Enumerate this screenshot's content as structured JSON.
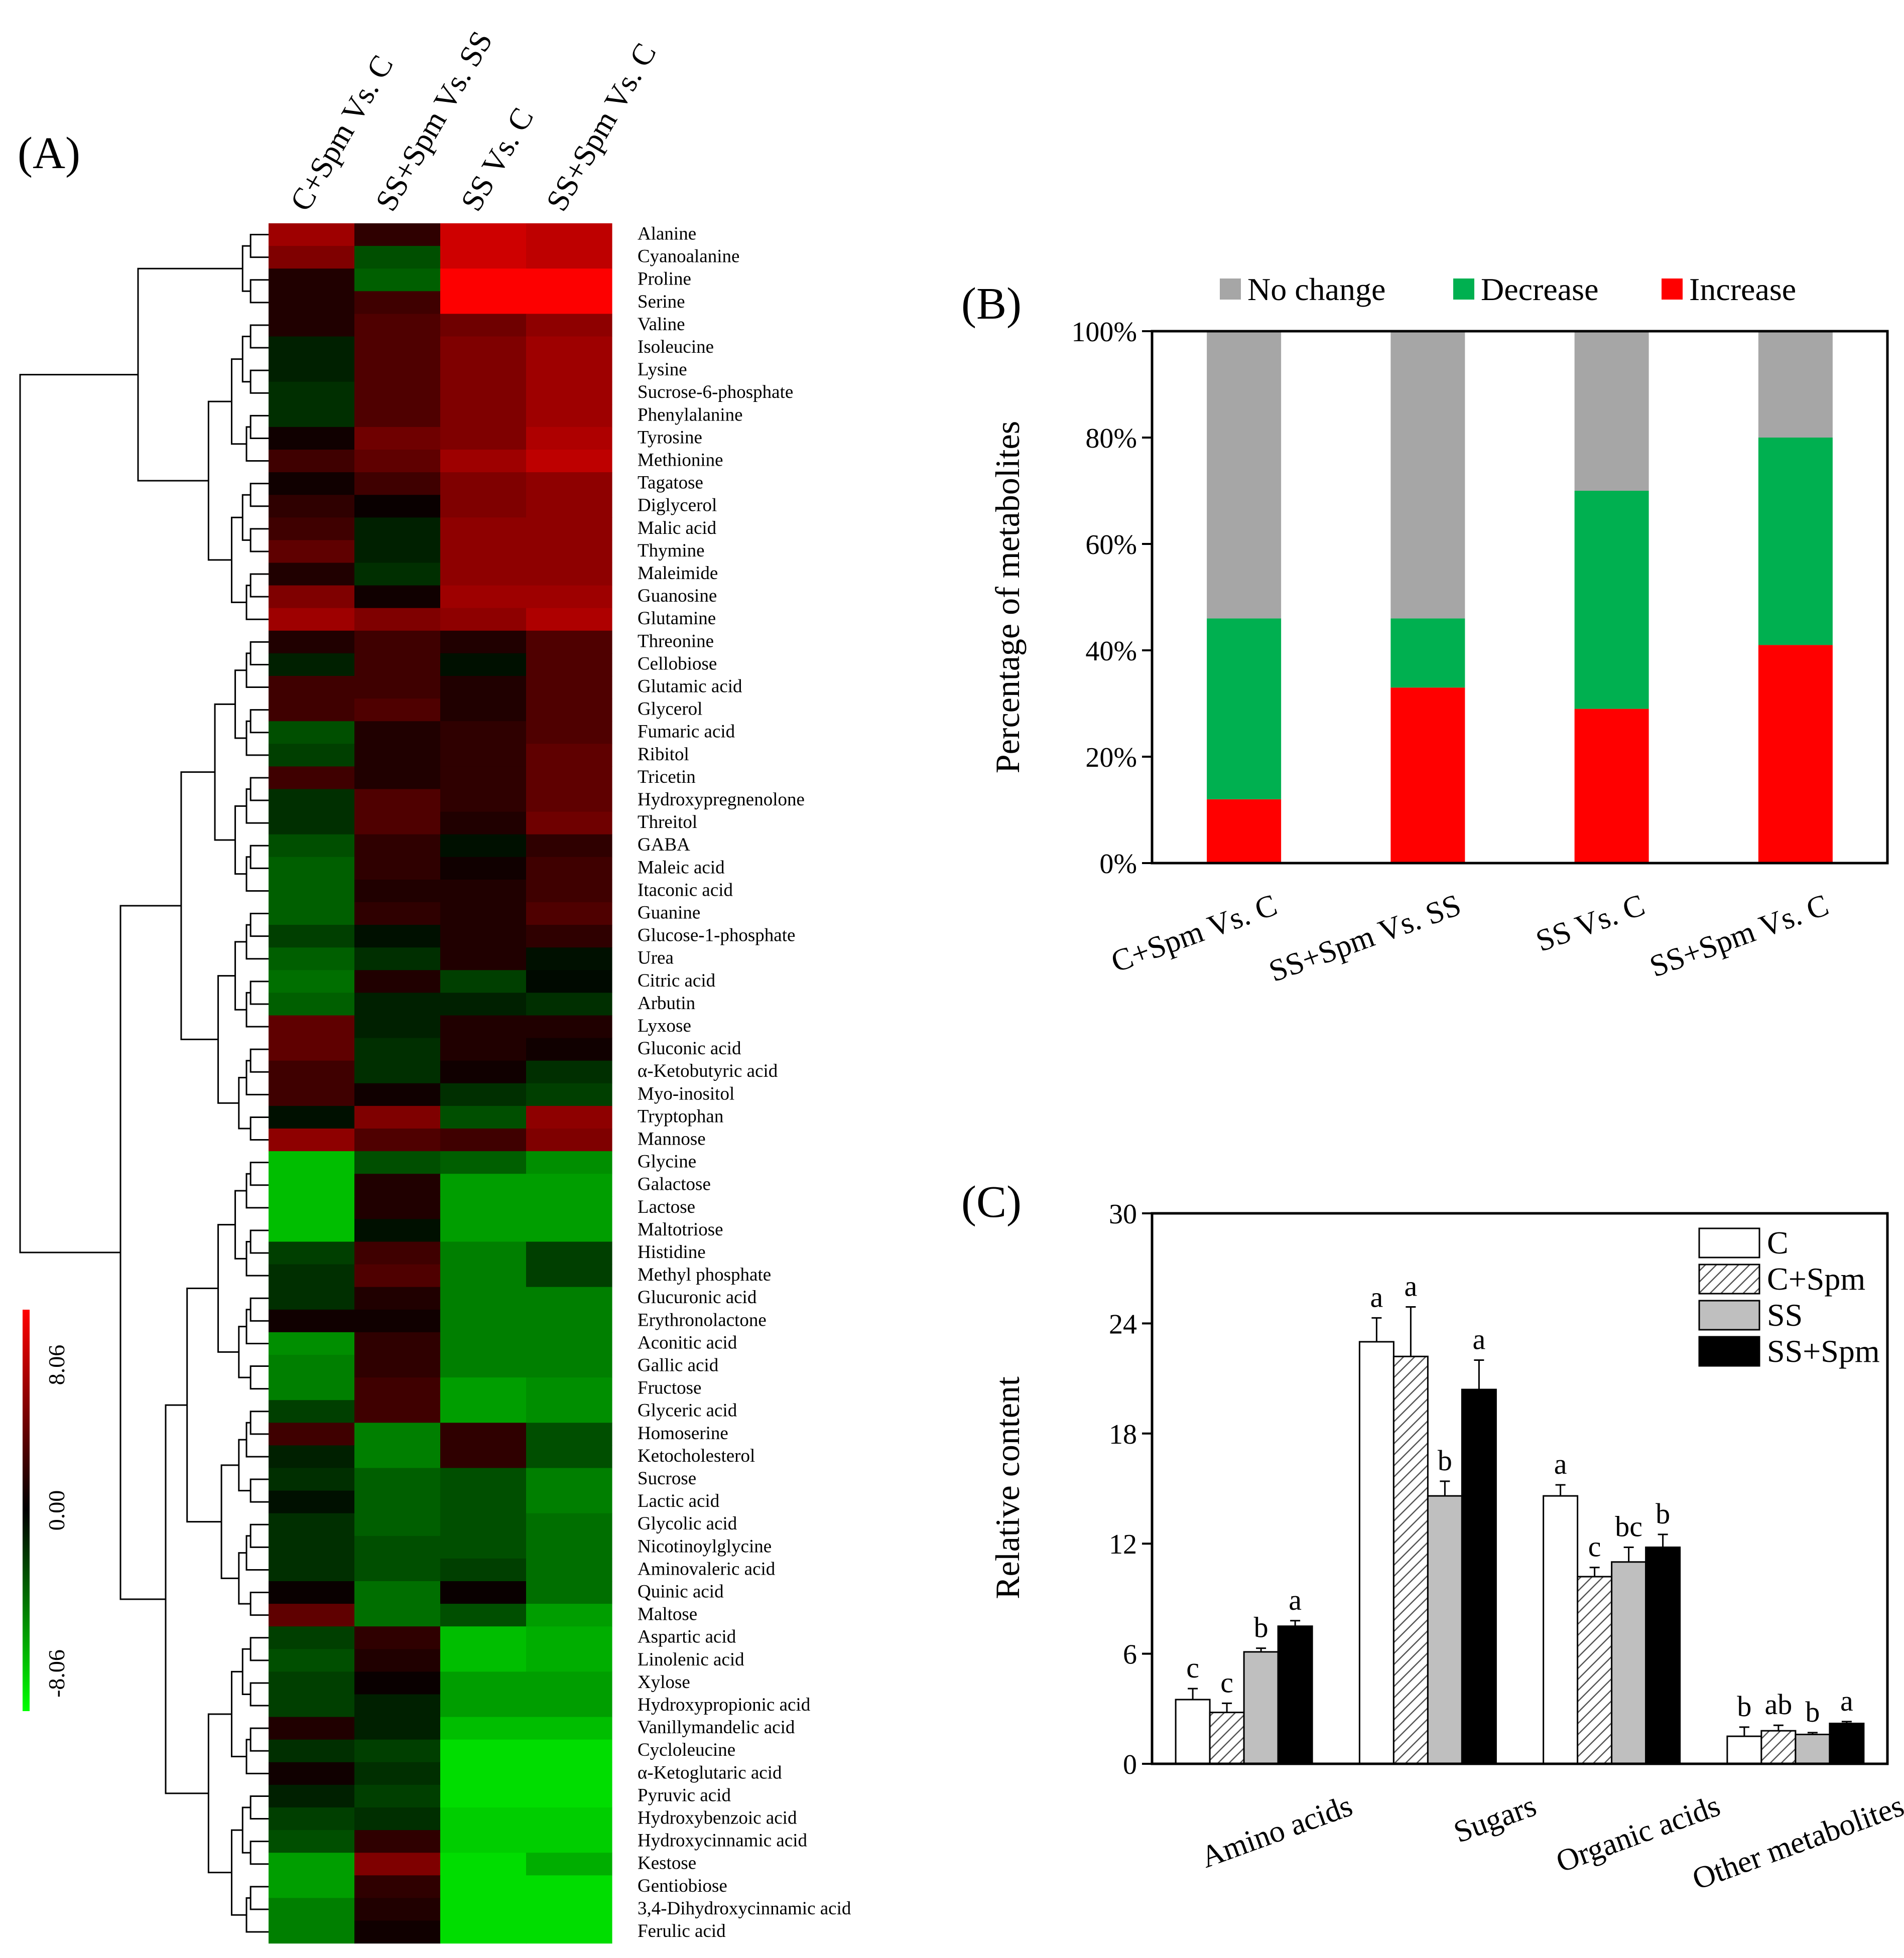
{
  "panels": [
    {
      "id": "A",
      "label": "(A)"
    },
    {
      "id": "B",
      "label": "(B)"
    },
    {
      "id": "C",
      "label": "(C)"
    }
  ],
  "chart_data": [
    {
      "type": "heatmap",
      "panel": "(A)",
      "columns": [
        "C+Spm Vs. C",
        "SS+Spm Vs. SS",
        "SS Vs. C",
        "SS+Spm Vs. C"
      ],
      "rows": [
        "Alanine",
        "Cyanoalanine",
        "Proline",
        "Serine",
        "Valine",
        "Isoleucine",
        "Lysine",
        "Sucrose-6-phosphate",
        "Phenylalanine",
        "Tyrosine",
        "Methionine",
        "Tagatose",
        "Diglycerol",
        "Malic acid",
        "Thymine",
        "Maleimide",
        "Guanosine",
        "Glutamine",
        "Threonine",
        "Cellobiose",
        "Glutamic acid",
        "Glycerol",
        "Fumaric acid",
        "Ribitol",
        "Tricetin",
        "Hydroxypregnenolone",
        "Threitol",
        "GABA",
        "Maleic acid",
        "Itaconic acid",
        "Guanine",
        "Glucose-1-phosphate",
        "Urea",
        "Citric acid",
        "Arbutin",
        "Lyxose",
        "Gluconic acid",
        "α-Ketobutyric acid",
        "Myo-inositol",
        "Tryptophan",
        "Mannose",
        "Glycine",
        "Galactose",
        "Lactose",
        "Maltotriose",
        "Histidine",
        "Methyl phosphate",
        "Glucuronic acid",
        "Erythronolactone",
        "Aconitic acid",
        "Gallic acid",
        "Fructose",
        "Glyceric acid",
        "Homoserine",
        "Ketocholesterol",
        "Sucrose",
        "Lactic acid",
        "Glycolic acid",
        "Nicotinoylglycine",
        "Aminovaleric acid",
        "Quinic acid",
        "Maltose",
        "Aspartic acid",
        "Linolenic acid",
        "Xylose",
        "Hydroxypropionic acid",
        "Vanillymandelic acid",
        "Cycloleucine",
        "α-Ketoglutaric acid",
        "Pyruvic acid",
        "Hydroxybenzoic acid",
        "Hydroxycinnamic acid",
        "Kestose",
        "Gentiobiose",
        "3,4-Dihydroxycinnamic acid",
        "Ferulic acid"
      ],
      "values": [
        [
          5,
          1.5,
          6.5,
          6
        ],
        [
          4,
          -2.5,
          6.5,
          6
        ],
        [
          1,
          -3,
          8,
          8
        ],
        [
          1,
          2,
          8,
          8
        ],
        [
          1,
          2.5,
          3.5,
          4.5
        ],
        [
          -1,
          2.5,
          4,
          5
        ],
        [
          -1,
          2.5,
          4,
          5
        ],
        [
          -1.5,
          2.5,
          4,
          5
        ],
        [
          -1.5,
          2.5,
          4,
          5
        ],
        [
          0.5,
          3.5,
          4,
          5.5
        ],
        [
          2,
          3,
          5,
          6
        ],
        [
          0.5,
          2,
          4,
          4.5
        ],
        [
          1.5,
          0.3,
          4,
          4.5
        ],
        [
          2,
          -1,
          4.5,
          4.5
        ],
        [
          3,
          -1,
          4.5,
          4.5
        ],
        [
          1,
          -1.5,
          4.5,
          4.5
        ],
        [
          4,
          0.5,
          5,
          5
        ],
        [
          5,
          4,
          4.5,
          5.5
        ],
        [
          1,
          2,
          1,
          2.5
        ],
        [
          -1,
          2,
          -0.5,
          2.5
        ],
        [
          2,
          2,
          1,
          2.5
        ],
        [
          2,
          2.5,
          1,
          2.5
        ],
        [
          -2.5,
          1,
          1.5,
          2.5
        ],
        [
          -2,
          1,
          1.5,
          3
        ],
        [
          2,
          1,
          1.5,
          3
        ],
        [
          -1.5,
          2.5,
          1.5,
          3
        ],
        [
          -1.5,
          2.5,
          1,
          3.5
        ],
        [
          -2.5,
          1.5,
          -0.5,
          1.5
        ],
        [
          -3,
          1.5,
          0.5,
          2
        ],
        [
          -3,
          1,
          1,
          2
        ],
        [
          -3,
          1.5,
          1,
          2.5
        ],
        [
          -2,
          -0.5,
          1,
          1.5
        ],
        [
          -3,
          -1.5,
          1,
          -0.5
        ],
        [
          -3.5,
          1,
          -2,
          -0.3
        ],
        [
          -3,
          -1,
          -1,
          -1.5
        ],
        [
          3,
          -1,
          1,
          1
        ],
        [
          3,
          -1.5,
          1,
          0.5
        ],
        [
          2,
          -1.5,
          0.5,
          -1.5
        ],
        [
          2,
          0.5,
          -1.5,
          -2
        ],
        [
          -0.5,
          4,
          -2.5,
          4.5
        ],
        [
          4.5,
          2.5,
          2,
          4
        ],
        [
          -6,
          -2.5,
          -3,
          -4.5
        ],
        [
          -6,
          1,
          -5,
          -5
        ],
        [
          -6,
          1,
          -5,
          -5
        ],
        [
          -6,
          -0.5,
          -5,
          -5
        ],
        [
          -2,
          2,
          -4,
          -2
        ],
        [
          -1.5,
          2.5,
          -4,
          -2
        ],
        [
          -1.5,
          1,
          -4,
          -4
        ],
        [
          0.5,
          0.5,
          -4,
          -4
        ],
        [
          -4.5,
          1.5,
          -4,
          -4
        ],
        [
          -4,
          1.5,
          -4,
          -4
        ],
        [
          -4,
          2,
          -5,
          -4.5
        ],
        [
          -2,
          2,
          -5,
          -4.5
        ],
        [
          2,
          -4,
          1.5,
          -2.5
        ],
        [
          -1,
          -4,
          1.5,
          -2.5
        ],
        [
          -1.5,
          -3,
          -2.5,
          -4
        ],
        [
          -0.5,
          -3,
          -2.5,
          -4
        ],
        [
          -1.5,
          -3,
          -2.5,
          -3.5
        ],
        [
          -1.5,
          -2.5,
          -2.5,
          -3.5
        ],
        [
          -1.5,
          -2.5,
          -2,
          -3.5
        ],
        [
          0.3,
          -3.5,
          0.3,
          -3.5
        ],
        [
          3,
          -3.5,
          -2.5,
          -5
        ],
        [
          -2,
          1.5,
          -6,
          -5.5
        ],
        [
          -2.5,
          1,
          -6,
          -5.5
        ],
        [
          -2,
          0.3,
          -5,
          -5
        ],
        [
          -2,
          -1,
          -5,
          -5
        ],
        [
          1,
          -1,
          -6,
          -6
        ],
        [
          -1.5,
          -2,
          -7,
          -7
        ],
        [
          0.5,
          -1.5,
          -7,
          -7
        ],
        [
          -1,
          -2,
          -7,
          -7
        ],
        [
          -2,
          -1.5,
          -6.5,
          -6.5
        ],
        [
          -2.5,
          1.5,
          -6.5,
          -6.5
        ],
        [
          -5,
          4,
          -7,
          -5.5
        ],
        [
          -5,
          1.5,
          -7,
          -7
        ],
        [
          -4,
          1,
          -7,
          -7
        ],
        [
          -4,
          0.5,
          -7,
          -7
        ]
      ],
      "scale": {
        "max": "8.06",
        "mid": "0.00",
        "min": "-8.06"
      },
      "colors": {
        "high": "#ff0000",
        "mid": "#000000",
        "low": "#00ff00"
      }
    },
    {
      "type": "bar",
      "stacked": true,
      "panel": "(B)",
      "categories": [
        "C+Spm Vs. C",
        "SS+Spm Vs. SS",
        "SS Vs. C",
        "SS+Spm Vs. C"
      ],
      "series": [
        {
          "name": "Increase",
          "values": [
            12,
            33,
            29,
            41
          ],
          "color": "#ff0000"
        },
        {
          "name": "Decrease",
          "values": [
            34,
            13,
            41,
            39
          ],
          "color": "#00b050"
        },
        {
          "name": "No change",
          "values": [
            54,
            54,
            30,
            20
          ],
          "color": "#a6a6a6"
        }
      ],
      "legend_order": [
        "No change",
        "Decrease",
        "Increase"
      ],
      "ylabel": "Percentage  of metabolites",
      "ylim": [
        0,
        100
      ],
      "yticks": [
        "0%",
        "20%",
        "40%",
        "60%",
        "80%",
        "100%"
      ],
      "legend": "top"
    },
    {
      "type": "bar",
      "panel": "(C)",
      "categories": [
        "Amino acids",
        "Sugars",
        "Organic acids",
        "Other metabolites"
      ],
      "series": [
        {
          "name": "C",
          "values": [
            3.5,
            23.0,
            14.6,
            1.5
          ],
          "errors": [
            0.6,
            1.3,
            0.6,
            0.5
          ],
          "letters": [
            "c",
            "a",
            "a",
            "b"
          ]
        },
        {
          "name": "C+Spm",
          "values": [
            2.8,
            22.2,
            10.2,
            1.8
          ],
          "errors": [
            0.5,
            2.7,
            0.5,
            0.3
          ],
          "letters": [
            "c",
            "a",
            "c",
            "ab"
          ]
        },
        {
          "name": "SS",
          "values": [
            6.1,
            14.6,
            11.0,
            1.6
          ],
          "errors": [
            0.2,
            0.8,
            0.8,
            0.1
          ],
          "letters": [
            "b",
            "b",
            "bc",
            "b"
          ]
        },
        {
          "name": "SS+Spm",
          "values": [
            7.5,
            20.4,
            11.8,
            2.2
          ],
          "errors": [
            0.3,
            1.6,
            0.7,
            0.1
          ],
          "letters": [
            "a",
            "a",
            "b",
            "a"
          ]
        }
      ],
      "ylabel": "Relative content",
      "ylim": [
        0,
        30
      ],
      "yticks": [
        "0",
        "6",
        "12",
        "18",
        "24",
        "30"
      ],
      "legend": "top-right"
    }
  ]
}
